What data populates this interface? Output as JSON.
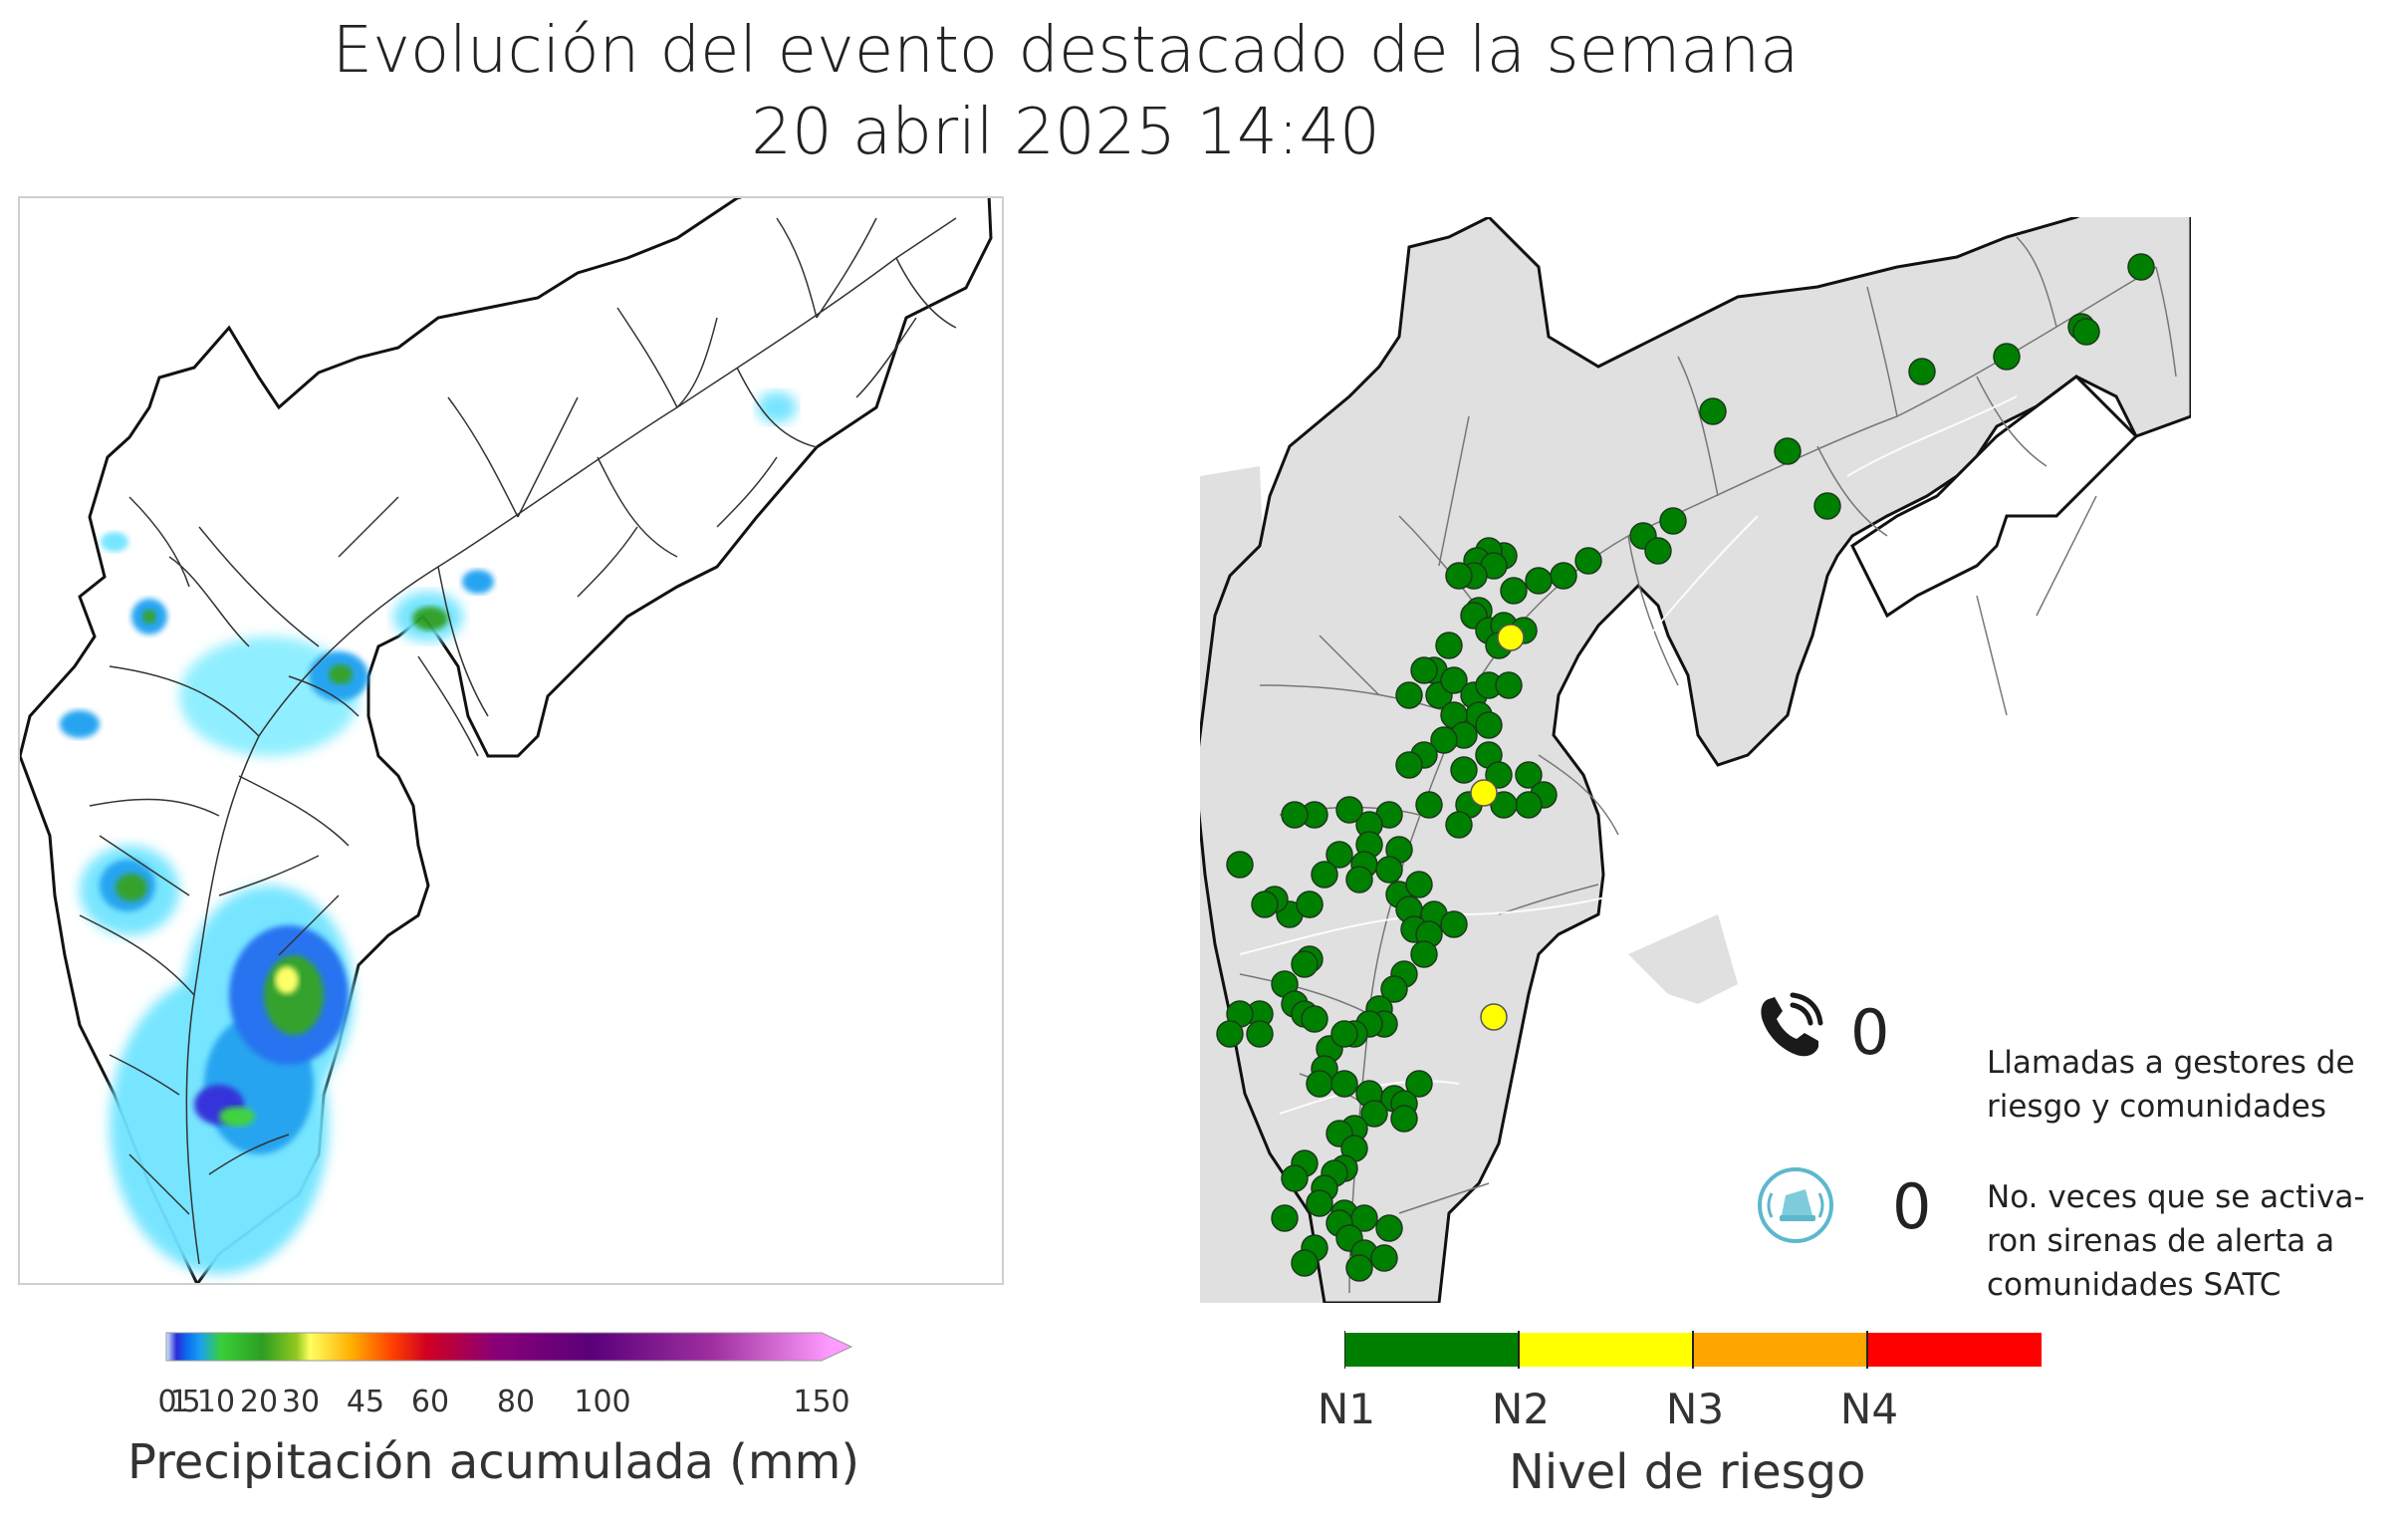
{
  "header": {
    "title": "Evolución del evento destacado de la semana",
    "datetime": "20 abril 2025 14:40"
  },
  "precip_colorbar": {
    "label": "Precipitación acumulada (mm)",
    "ticks": [
      "0",
      "1",
      "5",
      "10",
      "20",
      "30",
      "45",
      "60",
      "80",
      "100",
      "150"
    ],
    "colors": [
      "#2a2ad8",
      "#0a6cf0",
      "#1aa0f0",
      "#39d038",
      "#2c9e22",
      "#90c820",
      "#ffff60",
      "#ffb000",
      "#ff4000",
      "#d00040",
      "#8a0078",
      "#5a007a",
      "#a030a0",
      "#ff9cff"
    ]
  },
  "risk_colorbar": {
    "label": "Nivel de riesgo",
    "levels": [
      {
        "name": "N1",
        "color": "#008000"
      },
      {
        "name": "N2",
        "color": "#ffff00"
      },
      {
        "name": "N3",
        "color": "#ffa500"
      },
      {
        "name": "N4",
        "color": "#ff0000"
      }
    ]
  },
  "stats": {
    "calls_count": "0",
    "calls_text_line1": "Llamadas a gestores de",
    "calls_text_line2": "riesgo y comunidades",
    "sirens_count": "0",
    "sirens_text_line1": "No. veces que se activa-",
    "sirens_text_line2": "ron sirenas de alerta a",
    "sirens_text_line3": "comunidades SATC",
    "phone_icon": "phone-icon",
    "siren_icon": "siren-icon"
  }
}
